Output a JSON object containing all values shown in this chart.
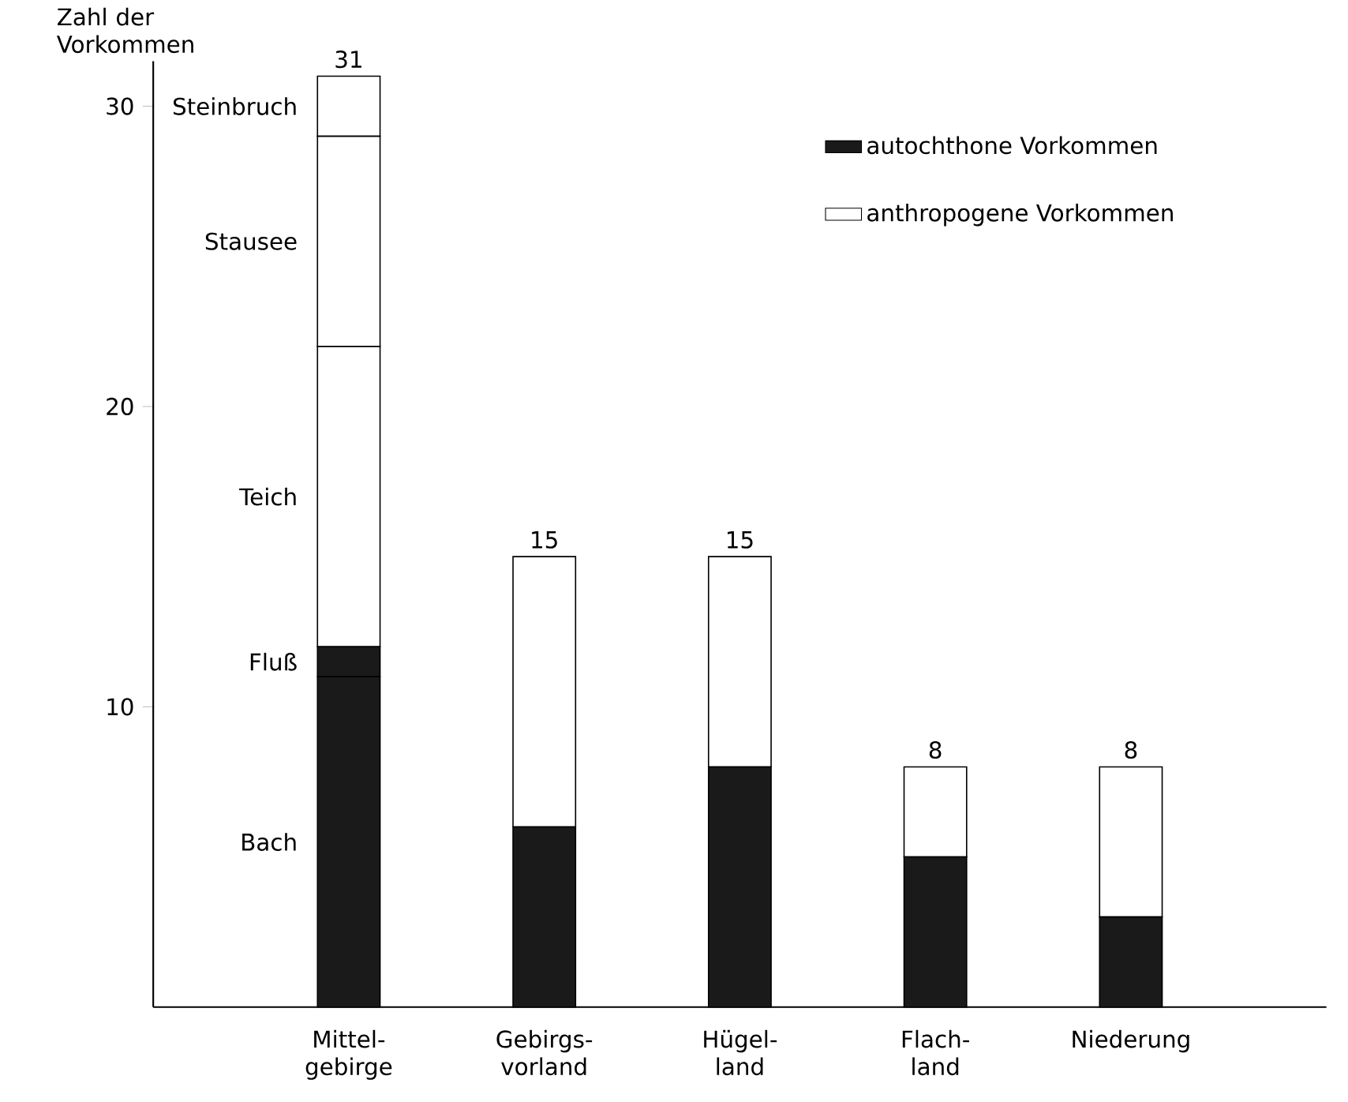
{
  "chart_data": {
    "type": "bar",
    "stacked": true,
    "ylabel": "Zahl der Vorkommen",
    "categories": [
      "Mittel- gebirge",
      "Gebirgs- vorland",
      "Hügel- land",
      "Flach- land",
      "Niederung"
    ],
    "series": [
      {
        "name": "autochthone Vorkommen",
        "color": "#1a1a1a",
        "values": [
          11,
          6,
          8,
          5,
          3
        ]
      },
      {
        "color": "#1a1a1a",
        "values": [
          1,
          null,
          null,
          null,
          null
        ]
      },
      {
        "name": "anthropogene Vorkommen",
        "color": "#ffffff",
        "values": [
          10,
          9,
          7,
          3,
          5
        ]
      },
      {
        "color": "#ffffff",
        "values": [
          7,
          null,
          null,
          null,
          null
        ]
      },
      {
        "color": "#ffffff",
        "values": [
          2,
          null,
          null,
          null,
          null
        ]
      }
    ],
    "totals": [
      "31",
      "15",
      "15",
      "8",
      "8"
    ],
    "annotations": [
      "Bach",
      "Fluß",
      "Teich",
      "Stausee",
      "Steinbruch"
    ],
    "ylim": [
      0,
      31.5
    ],
    "yticks": [
      10,
      20,
      30
    ],
    "legend": "top right",
    "grid": false
  }
}
